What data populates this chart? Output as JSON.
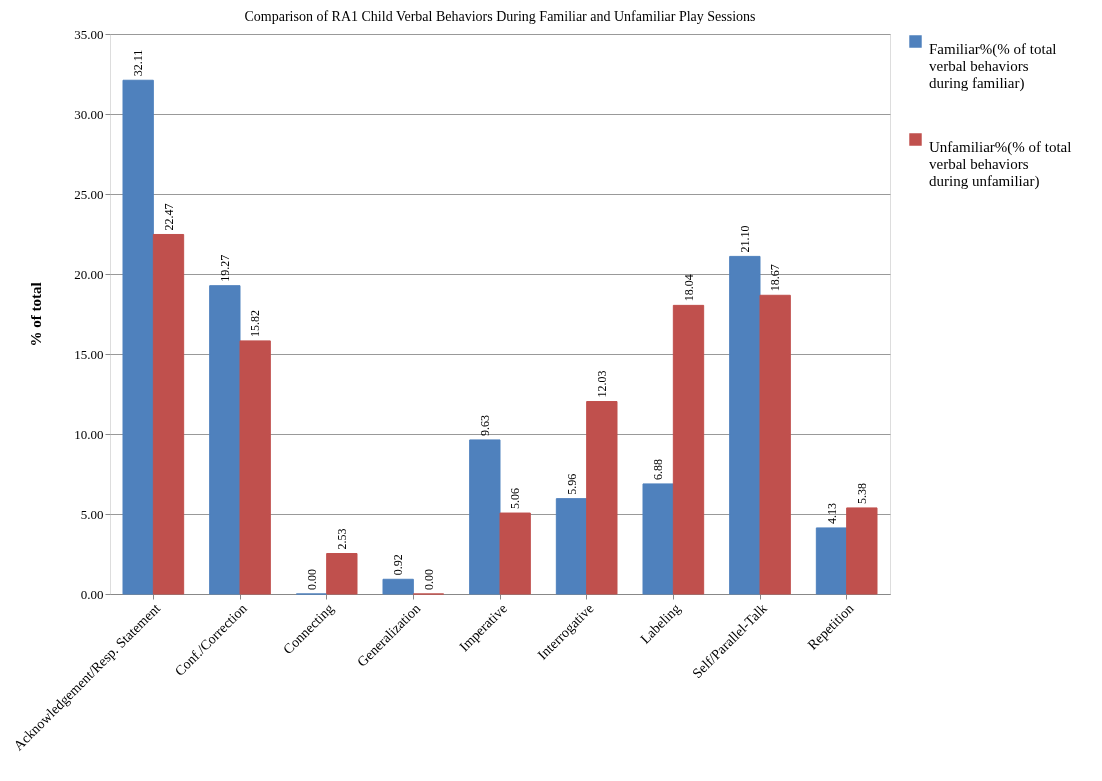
{
  "chart_data": {
    "type": "bar",
    "title": "Comparison of RA1 Child Verbal Behaviors During Familiar and Unfamiliar Play Sessions",
    "ylabel": "% of total",
    "categories": [
      "Acknowledgement/Resp. Statement",
      "Conf./Correction",
      "Connecting",
      "Generalization",
      "Imperative",
      "Interrogative",
      "Labeling",
      "Self/Parallel-Talk",
      "Repetition"
    ],
    "series": [
      {
        "name": "Familiar%(% of total verbal behaviors during familiar)",
        "color": "#4f81bd",
        "values": [
          32.11,
          19.27,
          0.0,
          0.92,
          9.63,
          5.96,
          6.88,
          21.1,
          4.13
        ],
        "value_labels": [
          "32.11",
          "19.27",
          "0.00",
          "0.92",
          "9.63",
          "5.96",
          "6.88",
          "21.10",
          "4.13"
        ]
      },
      {
        "name": "Unfamiliar%(% of total verbal behaviors during unfamiliar)",
        "color": "#c0504d",
        "values": [
          22.47,
          15.82,
          2.53,
          0.0,
          5.06,
          12.03,
          18.04,
          18.67,
          5.38
        ],
        "value_labels": [
          "22.47",
          "15.82",
          "2.53",
          "0.00",
          "5.06",
          "12.03",
          "18.04",
          "18.67",
          "5.38"
        ]
      }
    ],
    "ylim": [
      0,
      35
    ],
    "yticks": [
      {
        "value": 0,
        "label": "0.00"
      },
      {
        "value": 5,
        "label": "5.00"
      },
      {
        "value": 10,
        "label": "10.00"
      },
      {
        "value": 15,
        "label": "15.00"
      },
      {
        "value": 20,
        "label": "20.00"
      },
      {
        "value": 25,
        "label": "25.00"
      },
      {
        "value": 30,
        "label": "30.00"
      },
      {
        "value": 35,
        "label": "35.00"
      }
    ],
    "grid": "y",
    "legend": "right"
  }
}
